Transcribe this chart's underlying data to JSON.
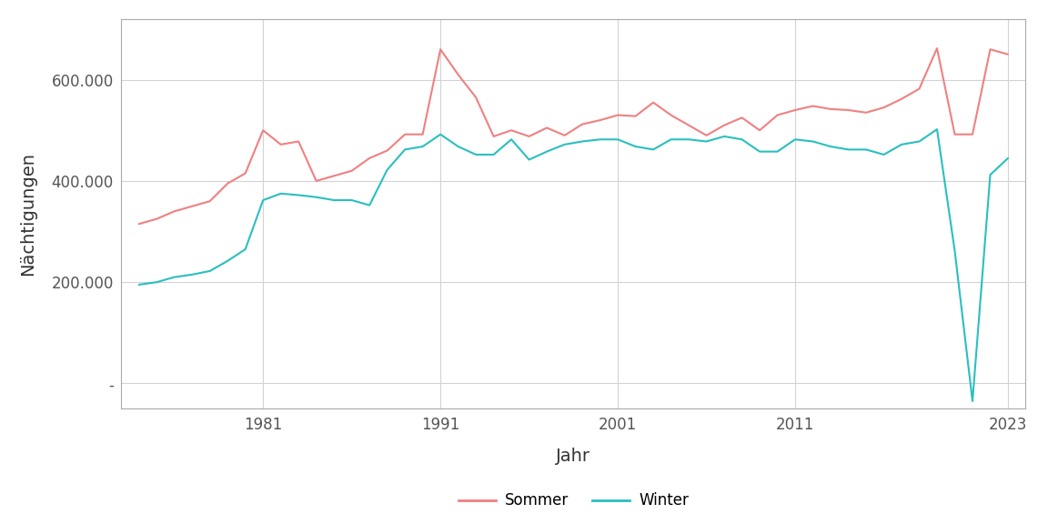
{
  "title": "",
  "xlabel": "Jahr",
  "ylabel": "Nächtigungen",
  "sommer_color": "#F08080",
  "winter_color": "#2ABFBF",
  "background_color": "#ffffff",
  "panel_background": "#ffffff",
  "grid_color": "#d3d3d3",
  "ylim": [
    -50000,
    720000
  ],
  "yticks": [
    0,
    200000,
    400000,
    600000
  ],
  "ytick_labels": [
    "-",
    "200.000",
    "400.000",
    "600.000"
  ],
  "xticks": [
    1981,
    1991,
    2001,
    2011,
    2023
  ],
  "legend_labels": [
    "Sommer",
    "Winter"
  ],
  "years": [
    1974,
    1975,
    1976,
    1977,
    1978,
    1979,
    1980,
    1981,
    1982,
    1983,
    1984,
    1985,
    1986,
    1987,
    1988,
    1989,
    1990,
    1991,
    1992,
    1993,
    1994,
    1995,
    1996,
    1997,
    1998,
    1999,
    2000,
    2001,
    2002,
    2003,
    2004,
    2005,
    2006,
    2007,
    2008,
    2009,
    2010,
    2011,
    2012,
    2013,
    2014,
    2015,
    2016,
    2017,
    2018,
    2019,
    2020,
    2021,
    2022,
    2023
  ],
  "sommer": [
    315000,
    325000,
    340000,
    350000,
    360000,
    395000,
    415000,
    500000,
    472000,
    478000,
    400000,
    410000,
    420000,
    445000,
    460000,
    492000,
    492000,
    660000,
    610000,
    565000,
    488000,
    500000,
    488000,
    505000,
    490000,
    512000,
    520000,
    530000,
    528000,
    555000,
    530000,
    510000,
    490000,
    510000,
    525000,
    500000,
    530000,
    540000,
    548000,
    542000,
    540000,
    535000,
    545000,
    562000,
    582000,
    662000,
    492000,
    492000,
    660000,
    650000
  ],
  "winter": [
    195000,
    200000,
    210000,
    215000,
    222000,
    242000,
    265000,
    362000,
    375000,
    372000,
    368000,
    362000,
    362000,
    352000,
    422000,
    462000,
    468000,
    492000,
    468000,
    452000,
    452000,
    482000,
    442000,
    458000,
    472000,
    478000,
    482000,
    482000,
    468000,
    462000,
    482000,
    482000,
    478000,
    488000,
    482000,
    458000,
    458000,
    482000,
    478000,
    468000,
    462000,
    462000,
    452000,
    472000,
    478000,
    502000,
    262000,
    -35000,
    412000,
    445000
  ]
}
